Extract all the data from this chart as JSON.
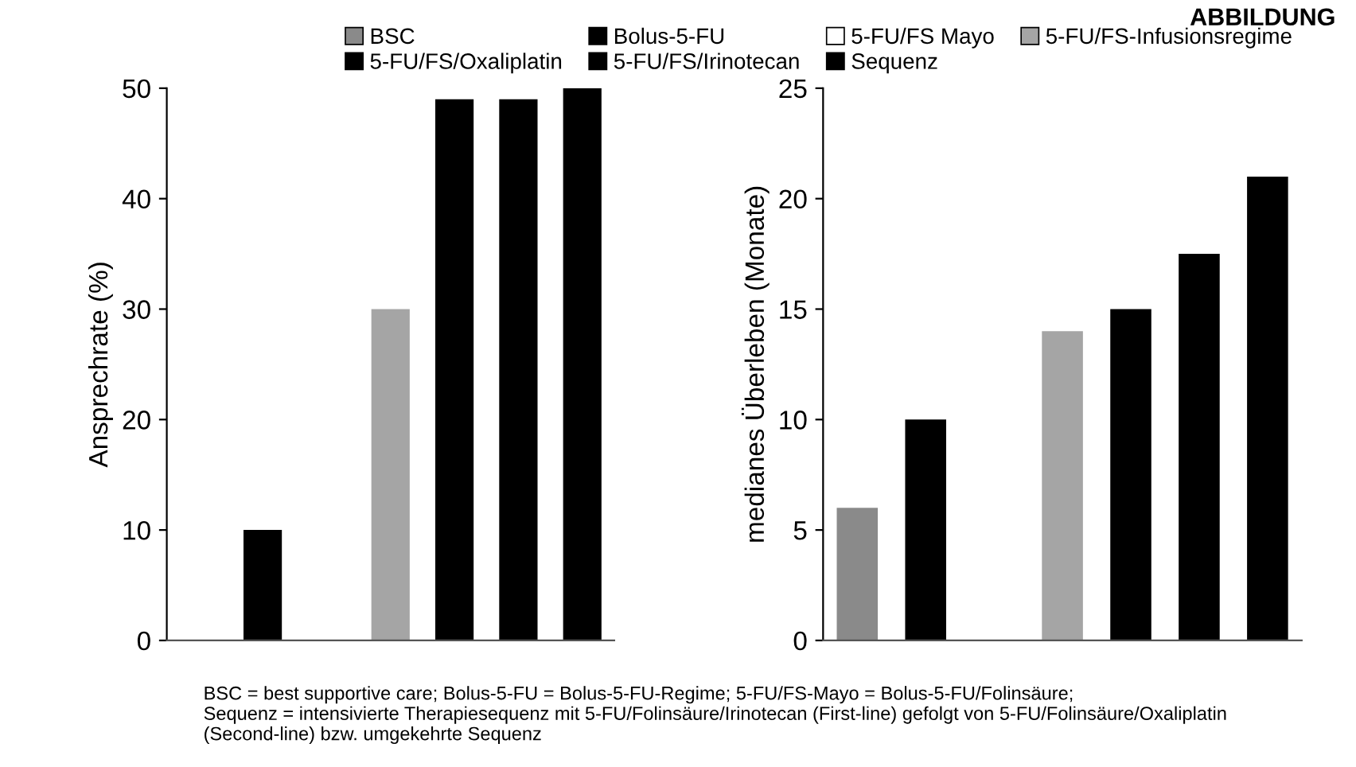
{
  "chart_data": [
    {
      "type": "bar",
      "ylabel": "Ansprechrate (%)",
      "categories": [
        null
      ],
      "ylim": [
        0,
        50
      ],
      "yticks": [
        0,
        10,
        20,
        30,
        40,
        50
      ],
      "grid": false,
      "legend": "top",
      "series": [
        {
          "name": "BSC",
          "color": "#8a8a8a",
          "values": [
            null
          ]
        },
        {
          "name": "Bolus-5-FU",
          "color": "#000000",
          "values": [
            10
          ]
        },
        {
          "name": "5-FU/FS Mayo",
          "color": "#ffffff",
          "values": [
            null
          ]
        },
        {
          "name": "5-FU/FS-Infusionsregime",
          "color": "#a5a5a5",
          "values": [
            30
          ]
        },
        {
          "name": "5-FU/FS/Oxaliplatin",
          "color": "#000000",
          "values": [
            49
          ]
        },
        {
          "name": "5-FU/FS/Irinotecan",
          "color": "#000000",
          "values": [
            49
          ]
        },
        {
          "name": "Sequenz",
          "color": "#000000",
          "values": [
            50
          ]
        }
      ],
      "annotations": [
        "BSC = best supportive care; Bolus-5-FU = Bolus-5-FU-Regime; 5-FU/FS-Mayo = Bolus-5-FU/Folinsäure;\nSequenz = intensivierte Therapiesequenz mit 5-FU/Folinsäure/Irinotecan (First-line) gefolgt von 5-FU/Folinsäure/Oxaliplatin\n(Second-line) bzw. umgekehrte Sequenz"
      ]
    },
    {
      "type": "bar",
      "ylabel": "medianes Überleben (Monate)",
      "annotations": [
        "ABBILDUNG"
      ],
      "categories": [
        null
      ],
      "ylim": [
        0,
        25
      ],
      "yticks": [
        0,
        5,
        10,
        15,
        20,
        25
      ],
      "grid": false,
      "series": [
        {
          "color": "#8a8a8a",
          "values": [
            6
          ]
        },
        {
          "color": "#000000",
          "values": [
            10
          ]
        },
        {
          "color": "#ffffff",
          "values": [
            null
          ]
        },
        {
          "color": "#a5a5a5",
          "values": [
            14
          ]
        },
        {
          "color": "#000000",
          "values": [
            15
          ]
        },
        {
          "color": "#000000",
          "values": [
            17.5
          ]
        },
        {
          "color": "#000000",
          "values": [
            21
          ]
        }
      ]
    }
  ]
}
